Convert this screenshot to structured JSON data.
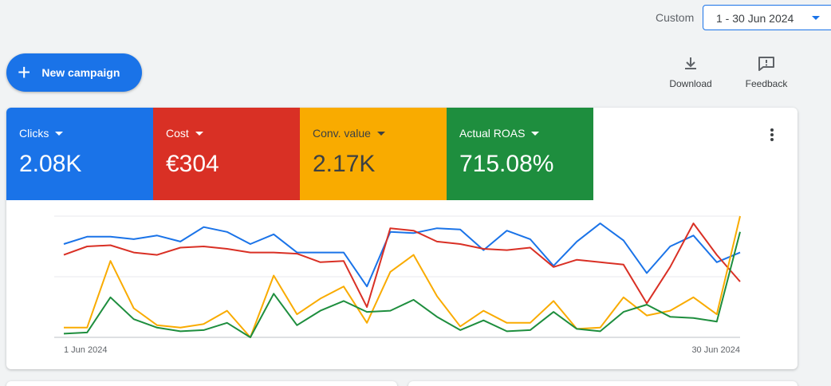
{
  "header": {
    "range_label": "Custom",
    "date_range": "1 - 30 Jun 2024"
  },
  "toolbar": {
    "new_campaign_label": "New campaign",
    "download_label": "Download",
    "feedback_label": "Feedback",
    "new_campaign_icon": "plus-icon",
    "download_icon": "download-icon",
    "feedback_icon": "feedback-icon",
    "more_icon": "more-vert-icon"
  },
  "colors": {
    "clicks": "#1a73e8",
    "cost": "#d93025",
    "conv_value": "#f9ab00",
    "roas": "#1e8e3e",
    "accent": "#1a73e8"
  },
  "metrics": [
    {
      "label": "Clicks",
      "value": "2.08K",
      "color": "#1a73e8"
    },
    {
      "label": "Cost",
      "value": "€304",
      "color": "#d93025"
    },
    {
      "label": "Conv. value",
      "value": "2.17K",
      "color": "#f9ab00"
    },
    {
      "label": "Actual ROAS",
      "value": "715.08%",
      "color": "#1e8e3e"
    }
  ],
  "chart_data": {
    "type": "line",
    "x": [
      1,
      2,
      3,
      4,
      5,
      6,
      7,
      8,
      9,
      10,
      11,
      12,
      13,
      14,
      15,
      16,
      17,
      18,
      19,
      20,
      21,
      22,
      23,
      24,
      25,
      26,
      27,
      28,
      29,
      30
    ],
    "x_tick_labels": [
      "1 Jun 2024",
      "30 Jun 2024"
    ],
    "ylim": [
      0,
      100
    ],
    "grid": true,
    "series": [
      {
        "name": "Clicks",
        "color": "#1a73e8",
        "values": [
          77,
          83,
          83,
          81,
          84,
          79,
          91,
          87,
          77,
          85,
          70,
          70,
          70,
          42,
          87,
          86,
          90,
          89,
          72,
          88,
          81,
          59,
          79,
          94,
          80,
          53,
          75,
          84,
          62,
          70
        ]
      },
      {
        "name": "Cost",
        "color": "#d93025",
        "values": [
          68,
          75,
          76,
          70,
          68,
          74,
          75,
          73,
          70,
          70,
          69,
          62,
          63,
          25,
          90,
          88,
          79,
          77,
          73,
          72,
          74,
          58,
          64,
          62,
          60,
          28,
          58,
          94,
          68,
          46
        ]
      },
      {
        "name": "Conv. value",
        "color": "#f9ab00",
        "values": [
          8,
          8,
          63,
          24,
          10,
          8,
          11,
          22,
          0,
          51,
          19,
          32,
          42,
          12,
          54,
          68,
          34,
          9,
          22,
          12,
          12,
          30,
          7,
          8,
          33,
          18,
          22,
          33,
          19,
          100
        ]
      },
      {
        "name": "Actual ROAS",
        "color": "#1e8e3e",
        "values": [
          3,
          4,
          33,
          15,
          8,
          5,
          6,
          12,
          0,
          36,
          10,
          22,
          30,
          21,
          22,
          31,
          17,
          6,
          14,
          5,
          6,
          21,
          7,
          5,
          21,
          27,
          17,
          16,
          13,
          87
        ]
      }
    ]
  }
}
